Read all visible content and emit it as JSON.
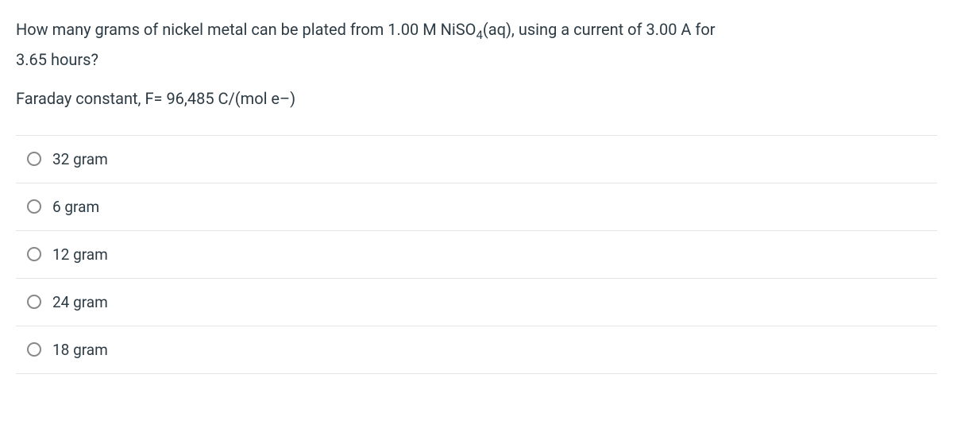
{
  "question": {
    "line1_prefix": "How many grams of nickel metal can be plated from 1.00 M NiSO",
    "line1_sub": "4",
    "line1_suffix": "(aq), using a current of 3.00 A for",
    "line2": "3.65 hours?"
  },
  "faraday": {
    "prefix": "Faraday constant, F= 96,485 C/(mol e",
    "sup": "–",
    "suffix": ")"
  },
  "options": [
    {
      "label": "32 gram"
    },
    {
      "label": "6 gram"
    },
    {
      "label": "12 gram"
    },
    {
      "label": "24 gram"
    },
    {
      "label": "18 gram"
    }
  ],
  "colors": {
    "text": "#2d3b45",
    "border": "#e5e5e5",
    "radio_border": "#888888",
    "background": "#ffffff"
  },
  "typography": {
    "question_fontsize": 20,
    "option_fontsize": 19
  }
}
